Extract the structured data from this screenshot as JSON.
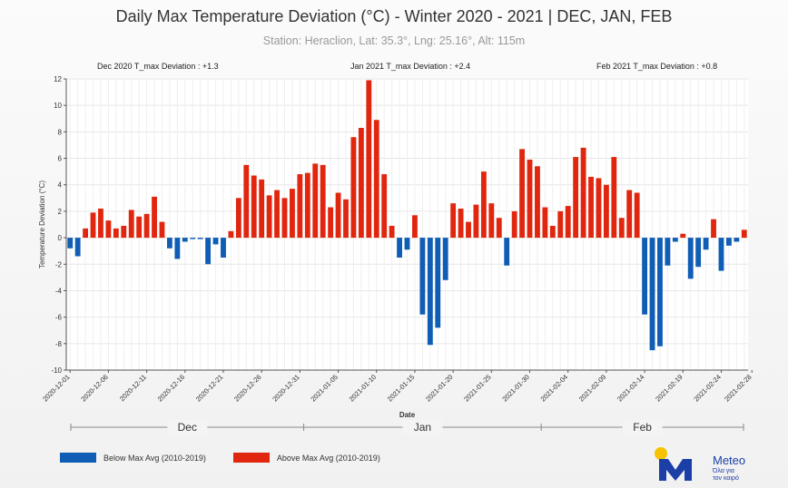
{
  "title": "Daily Max Temperature Deviation (°C) - Winter 2020 - 2021 | DEC, JAN, FEB",
  "subtitle": "Station: Heraclion, Lat: 35.3°, Lng: 25.16°, Alt: 115m",
  "annotations": {
    "dec": "Dec 2020 T_max Deviation : +1.3",
    "jan": "Jan 2021 T_max Deviation : +2.4",
    "feb": "Feb 2021 T_max Deviation : +0.8"
  },
  "months": [
    "Dec",
    "Jan",
    "Feb"
  ],
  "legend": {
    "below": "Below Max Avg (2010-2019)",
    "above": "Above Max Avg (2010-2019)"
  },
  "colors": {
    "below": "#0f5db5",
    "above": "#e1260f"
  },
  "logo": {
    "name": "Meteo",
    "tagline_1": "Όλα για",
    "tagline_2": "τον καιρό"
  },
  "chart_data": {
    "type": "bar",
    "xlabel": "Date",
    "ylabel": "Temperature Deviation (°C)",
    "ylim": [
      -10,
      12
    ],
    "yticks": [
      -10,
      -8,
      -6,
      -4,
      -2,
      0,
      2,
      4,
      6,
      8,
      10,
      12
    ],
    "grid": true,
    "start_date": "2020-12-01",
    "xtick_labels": [
      "2020-12-01",
      "2020-12-06",
      "2020-12-11",
      "2020-12-16",
      "2020-12-21",
      "2020-12-26",
      "2020-12-31",
      "2021-01-05",
      "2021-01-10",
      "2021-01-15",
      "2021-01-20",
      "2021-01-25",
      "2021-01-30",
      "2021-02-04",
      "2021-02-09",
      "2021-02-14",
      "2021-02-19",
      "2021-02-24",
      "2021-02-28"
    ],
    "values": [
      -0.8,
      -1.4,
      0.7,
      1.9,
      2.2,
      1.3,
      0.7,
      0.9,
      2.1,
      1.6,
      1.8,
      3.1,
      1.2,
      -0.8,
      -1.6,
      -0.3,
      -0.1,
      -0.1,
      -2.0,
      -0.5,
      -1.5,
      0.5,
      3.0,
      5.5,
      4.7,
      4.4,
      3.2,
      3.6,
      3.0,
      3.7,
      4.8,
      4.9,
      5.6,
      5.5,
      2.3,
      3.4,
      2.9,
      7.6,
      8.3,
      11.9,
      8.9,
      4.8,
      0.9,
      -1.5,
      -0.9,
      1.7,
      -5.8,
      -8.1,
      -6.8,
      -3.2,
      2.6,
      2.2,
      1.2,
      2.5,
      5.0,
      2.6,
      1.5,
      -2.1,
      2.0,
      6.7,
      5.9,
      5.4,
      2.3,
      0.9,
      2.0,
      2.4,
      6.1,
      6.8,
      4.6,
      4.5,
      4.0,
      6.1,
      1.5,
      3.6,
      3.4,
      -5.8,
      -8.5,
      -8.2,
      -2.1,
      -0.3,
      0.3,
      -3.1,
      -2.2,
      -0.9,
      1.4,
      -2.5,
      -0.6,
      -0.3,
      0.6
    ]
  }
}
